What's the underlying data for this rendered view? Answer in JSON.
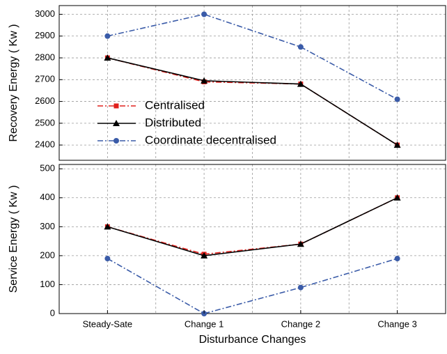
{
  "chart_data": [
    {
      "type": "line",
      "y_label": "Recovery Energy ( Kw )",
      "ylim": [
        2330,
        3040
      ],
      "yticks": [
        2400,
        2500,
        2600,
        2700,
        2800,
        2900,
        3000
      ],
      "grid": true,
      "legend": "left",
      "series": [
        {
          "name": "Centralised",
          "color": "#e0201c",
          "marker": "square",
          "linestyle": "dashdot",
          "values": [
            2800,
            2690,
            2680,
            2400
          ]
        },
        {
          "name": "Distributed",
          "color": "#000000",
          "marker": "triangle",
          "linestyle": "solid",
          "values": [
            2800,
            2695,
            2680,
            2400
          ]
        },
        {
          "name": "Coordinate decentralised",
          "color": "#3a5ba8",
          "marker": "circle",
          "linestyle": "dashdot",
          "values": [
            2900,
            3000,
            2850,
            2610
          ]
        }
      ]
    },
    {
      "type": "line",
      "y_label": "Service Energy  ( Kw )",
      "x_label": "Disturbance Changes",
      "categories": [
        "Steady-Sate",
        "Change 1",
        "Change 2",
        "Change 3"
      ],
      "ylim": [
        0,
        515
      ],
      "yticks": [
        0,
        100,
        200,
        300,
        400,
        500
      ],
      "grid": true,
      "series": [
        {
          "color": "#e0201c",
          "marker": "square",
          "linestyle": "dashdot",
          "values": [
            300,
            205,
            240,
            400
          ]
        },
        {
          "color": "#000000",
          "marker": "triangle",
          "linestyle": "solid",
          "values": [
            300,
            200,
            240,
            400
          ]
        },
        {
          "color": "#3a5ba8",
          "marker": "circle",
          "linestyle": "dashdot",
          "values": [
            190,
            0,
            90,
            190
          ]
        }
      ]
    }
  ]
}
